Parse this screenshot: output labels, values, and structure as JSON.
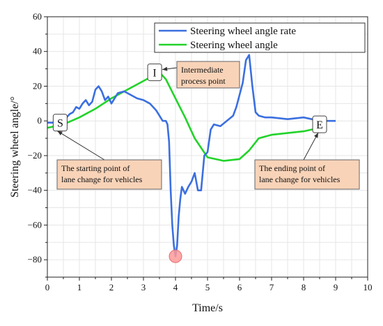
{
  "chart_data": {
    "type": "line",
    "xlabel": "Time/s",
    "ylabel": "Steering wheel angle/°",
    "xlim": [
      0,
      10
    ],
    "ylim": [
      -90,
      60
    ],
    "x_ticks": [
      0,
      1,
      2,
      3,
      4,
      5,
      6,
      7,
      8,
      9,
      10
    ],
    "y_ticks": [
      -80,
      -60,
      -40,
      -20,
      0,
      20,
      40,
      60
    ],
    "grid": true,
    "legend_position": "top-right",
    "colors": {
      "rate": "#3b6fe0",
      "angle": "#22d32a",
      "marker_fill": "#ff9a9a",
      "annotation_box": "#f8d3b8"
    },
    "series": [
      {
        "name": "Steering wheel angle rate",
        "x": [
          0,
          0.2,
          0.5,
          0.7,
          0.8,
          0.9,
          1.0,
          1.1,
          1.2,
          1.3,
          1.4,
          1.5,
          1.6,
          1.7,
          1.8,
          1.9,
          2.0,
          2.2,
          2.4,
          2.6,
          2.8,
          3.0,
          3.2,
          3.4,
          3.5,
          3.6,
          3.7,
          3.75,
          3.8,
          3.85,
          3.9,
          3.95,
          4.0,
          4.05,
          4.1,
          4.15,
          4.2,
          4.3,
          4.4,
          4.5,
          4.6,
          4.7,
          4.8,
          4.9,
          5.0,
          5.1,
          5.2,
          5.4,
          5.6,
          5.8,
          5.9,
          6.0,
          6.1,
          6.2,
          6.3,
          6.4,
          6.5,
          6.6,
          6.8,
          7.0,
          7.5,
          8.0,
          8.5,
          9.0
        ],
        "y": [
          -1,
          -1,
          0,
          4,
          5,
          8,
          7,
          10,
          12,
          9,
          11,
          18,
          20,
          17,
          12,
          14,
          10,
          16,
          17,
          15,
          13,
          12,
          10,
          6,
          3,
          0,
          0,
          -2,
          -12,
          -40,
          -60,
          -72,
          -78,
          -72,
          -55,
          -45,
          -38,
          -42,
          -38,
          -35,
          -30,
          -40,
          -40,
          -20,
          -18,
          -5,
          -2,
          -3,
          0,
          3,
          8,
          15,
          22,
          35,
          38,
          20,
          5,
          3,
          2,
          2,
          1,
          2,
          0,
          0
        ]
      },
      {
        "name": "Steering wheel angle",
        "x": [
          0,
          0.5,
          1.0,
          1.5,
          2.0,
          2.5,
          3.0,
          3.3,
          3.5,
          3.7,
          4.0,
          4.3,
          4.6,
          5.0,
          5.5,
          6.0,
          6.3,
          6.6,
          7.0,
          7.5,
          8.0,
          8.5
        ],
        "y": [
          -4,
          -2,
          2,
          7,
          13,
          18,
          23,
          26,
          28,
          24,
          13,
          2,
          -10,
          -21,
          -23,
          -22,
          -17,
          -10,
          -8,
          -7,
          -6,
          -4
        ]
      }
    ],
    "markers": [
      {
        "label": "S",
        "x": 0.4,
        "y": -1
      },
      {
        "label": "I",
        "x": 3.35,
        "y": 28
      },
      {
        "label": "E",
        "x": 8.5,
        "y": -2
      }
    ],
    "annotations": [
      {
        "lines": [
          "The starting point of",
          "lane change for vehicles"
        ]
      },
      {
        "lines": [
          "Intermediate",
          "process point"
        ]
      },
      {
        "lines": [
          "The ending point of",
          "lane change for vehicles"
        ]
      }
    ]
  }
}
